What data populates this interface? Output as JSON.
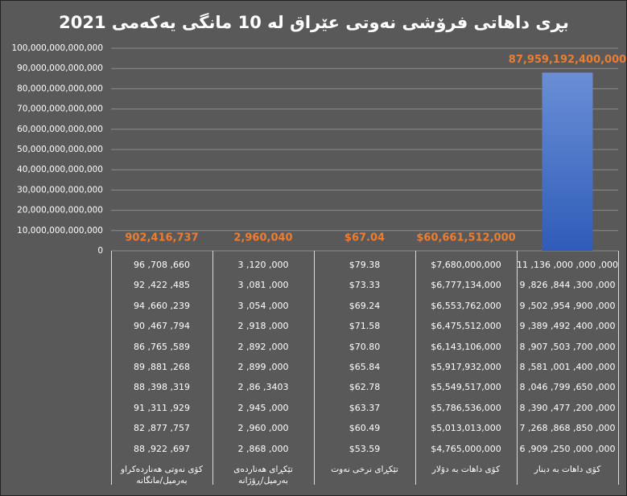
{
  "chart_data": {
    "type": "bar",
    "title": "بڕی داهاتی فرۆشی نەوتی عێراق لە 10 مانگی یەکەمی 2021",
    "categories": [
      "کۆی نەوتی هەناردەکراو\nبەرمیل/مانگانە",
      "تێکڕای هەناردەی\nبەرمیل/ڕۆژانە",
      "تێکڕای نرخی نەوت",
      "کۆی داهات بە دۆلار",
      "کۆی داهات بە دینار"
    ],
    "values": [
      902416737,
      2960040,
      67.04,
      60661512000,
      87959192400000
    ],
    "value_labels": [
      "902,416,737",
      "2,960,040",
      "$67.04",
      "$60,661,512,000",
      "87,959,192,400,000"
    ],
    "color": "#4472c4",
    "label_color": "#ed7d31",
    "ylim": [
      0,
      100000000000000
    ],
    "yticks": [
      0,
      {
        "value": 10000000000000,
        "label": "10,000,000,000,000"
      },
      {
        "value": 20000000000000,
        "label": "20,000,000,000,000"
      },
      {
        "value": 30000000000000,
        "label": "30,000,000,000,000"
      },
      {
        "value": 40000000000000,
        "label": "40,000,000,000,000"
      },
      {
        "value": 50000000000000,
        "label": "50,000,000,000,000"
      },
      {
        "value": 60000000000000,
        "label": "60,000,000,000,000"
      },
      {
        "value": 70000000000000,
        "label": "70,000,000,000,000"
      },
      {
        "value": 80000000000000,
        "label": "80,000,000,000,000"
      },
      {
        "value": 90000000000000,
        "label": "90,000,000,000,000"
      },
      {
        "value": 100000000000000,
        "label": "100,000,000,000,000"
      }
    ],
    "grid": true,
    "data_table": [
      [
        "96 ,708 ,660",
        "92 ,422 ,485",
        "94 ,660 ,239",
        "90 ,467 ,794",
        "86 ,765 ,589",
        "89 ,881 ,268",
        "88 ,398 ,319",
        "91 ,311 ,929",
        "82 ,877 ,757",
        "88 ,922 ,697"
      ],
      [
        "3 ,120 ,000",
        "3 ,081 ,000",
        "3 ,054 ,000",
        "2 ,918 ,000",
        "2 ,892 ,000",
        "2 ,899 ,000",
        "2 ,86 ,3403",
        "2 ,945 ,000",
        "2 ,960 ,000",
        "2 ,868 ,000"
      ],
      [
        "$79.38",
        "$73.33",
        "$69.24",
        "$71.58",
        "$70.80",
        "$65.84",
        "$62.78",
        "$63.37",
        "$60.49",
        "$53.59"
      ],
      [
        "$7,680,000,000",
        "$6,777,134,000",
        "$6,553,762,000",
        "$6,475,512,000",
        "$6,143,106,000",
        "$5,917,932,000",
        "$5,549,517,000",
        "$5,786,536,000",
        "$5,013,013,000",
        "$4,765,000,000"
      ],
      [
        "11 ,136 ,000 ,000 ,000",
        "9 ,826 ,844 ,300 ,000",
        "9 ,502 ,954 ,900 ,000",
        "9 ,389 ,492 ,400 ,000",
        "8 ,907 ,503 ,700 ,000",
        "8 ,581 ,001 ,400 ,000",
        "8 ,046 ,799 ,650 ,000",
        "8 ,390 ,477 ,200 ,000",
        "7 ,268 ,868 ,850 ,000",
        "6 ,909 ,250 ,000 ,000"
      ]
    ]
  }
}
